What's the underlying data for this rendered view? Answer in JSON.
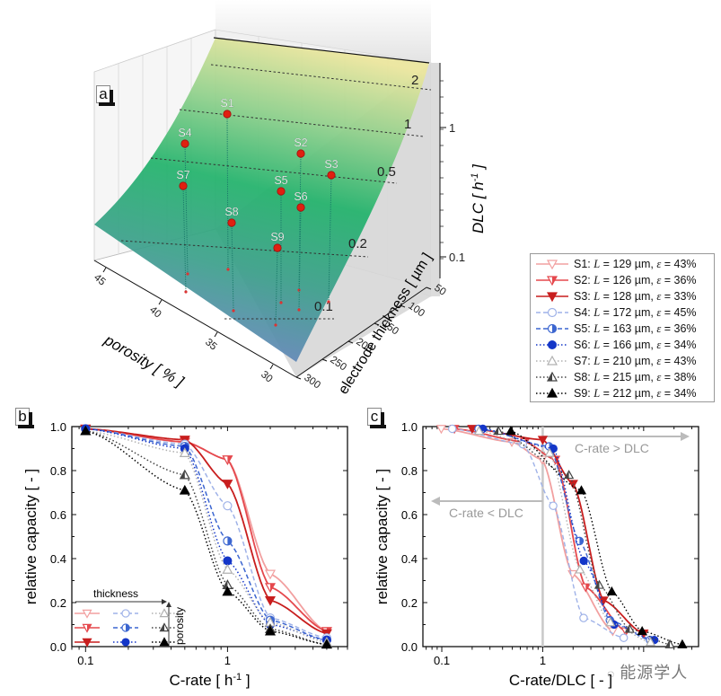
{
  "chart_data": [
    {
      "id": "a",
      "type": "surface3d",
      "panel_label": "a",
      "title": "",
      "xlabel": "porosity [ % ]",
      "ylabel": "electrode thickness [ µm ]",
      "zlabel": "DLC [ h-1 ]",
      "zlabel_main": "DLC [ h",
      "zlabel_sup": "-1",
      "zlabel_end": " ]",
      "x_ticks": [
        "45",
        "40",
        "35",
        "30"
      ],
      "y_ticks": [
        "50",
        "100",
        "150",
        "200",
        "250",
        "300"
      ],
      "z_ticks": [
        "1",
        "0.1"
      ],
      "contour_labels": [
        "2",
        "1",
        "0.5",
        "0.2",
        "0.1"
      ],
      "colormap": [
        "#6f86c2",
        "#3aa58a",
        "#22b36b",
        "#8fd08a",
        "#e8e49a"
      ],
      "zscale": "log",
      "points": [
        {
          "name": "S1",
          "porosity": 43,
          "thickness": 129,
          "DLC": 1.1
        },
        {
          "name": "S2",
          "porosity": 36,
          "thickness": 126,
          "DLC": 0.75
        },
        {
          "name": "S3",
          "porosity": 33,
          "thickness": 128,
          "DLC": 0.5
        },
        {
          "name": "S4",
          "porosity": 45,
          "thickness": 172,
          "DLC": 0.75
        },
        {
          "name": "S5",
          "porosity": 36,
          "thickness": 163,
          "DLC": 0.4
        },
        {
          "name": "S6",
          "porosity": 34,
          "thickness": 166,
          "DLC": 0.35
        },
        {
          "name": "S7",
          "porosity": 43,
          "thickness": 210,
          "DLC": 0.45
        },
        {
          "name": "S8",
          "porosity": 38,
          "thickness": 215,
          "DLC": 0.25
        },
        {
          "name": "S9",
          "porosity": 34,
          "thickness": 212,
          "DLC": 0.18
        }
      ]
    },
    {
      "id": "b",
      "type": "line",
      "panel_label": "b",
      "xlabel_main": "C-rate [ h",
      "xlabel_sup": "-1",
      "xlabel_end": " ]",
      "xlabel": "C-rate [ h-1 ]",
      "ylabel": "relative capacity [ - ]",
      "xscale": "log",
      "xlim": [
        0.08,
        7
      ],
      "ylim": [
        0,
        1
      ],
      "x_ticks": [
        {
          "v": 0.1,
          "label": "0.1"
        },
        {
          "v": 1,
          "label": "1"
        }
      ],
      "y_ticks": [
        "0.0",
        "0.2",
        "0.4",
        "0.6",
        "0.8",
        "1.0"
      ],
      "x": [
        0.1,
        0.5,
        1,
        2,
        5
      ],
      "inset_legend": {
        "thickness_label": "thickness",
        "porosity_label": "porosity"
      },
      "series": [
        {
          "name": "S1",
          "values": [
            0.99,
            0.93,
            0.85,
            0.33,
            0.07
          ]
        },
        {
          "name": "S2",
          "values": [
            0.99,
            0.93,
            0.85,
            0.27,
            0.07
          ]
        },
        {
          "name": "S3",
          "values": [
            0.99,
            0.94,
            0.74,
            0.21,
            0.06
          ]
        },
        {
          "name": "S4",
          "values": [
            0.99,
            0.92,
            0.64,
            0.13,
            0.04
          ]
        },
        {
          "name": "S5",
          "values": [
            0.99,
            0.91,
            0.48,
            0.12,
            0.03
          ]
        },
        {
          "name": "S6",
          "values": [
            0.99,
            0.9,
            0.39,
            0.1,
            0.03
          ]
        },
        {
          "name": "S7",
          "values": [
            0.98,
            0.88,
            0.35,
            0.11,
            0.02
          ]
        },
        {
          "name": "S8",
          "values": [
            0.98,
            0.78,
            0.28,
            0.08,
            0.01
          ]
        },
        {
          "name": "S9",
          "values": [
            0.98,
            0.71,
            0.25,
            0.07,
            0.01
          ]
        }
      ]
    },
    {
      "id": "c",
      "type": "line",
      "panel_label": "c",
      "xlabel": "C-rate/DLC [ - ]",
      "ylabel": "relative capacity [ - ]",
      "xscale": "log",
      "xlim": [
        0.065,
        35
      ],
      "ylim": [
        0,
        1
      ],
      "x_ticks": [
        {
          "v": 0.1,
          "label": "0.1"
        },
        {
          "v": 1,
          "label": "1"
        }
      ],
      "y_ticks": [
        "0.0",
        "0.2",
        "0.4",
        "0.6",
        "0.8",
        "1.0"
      ],
      "annotations": [
        "C-rate > DLC",
        "C-rate < DLC"
      ],
      "reference_line_x": 1,
      "dlc_values": {
        "S1": 1.1,
        "S2": 0.75,
        "S3": 0.5,
        "S4": 0.75,
        "S5": 0.4,
        "S6": 0.35,
        "S7": 0.45,
        "S8": 0.25,
        "S9": 0.18
      }
    }
  ],
  "legend": {
    "entries": [
      {
        "id": "S1",
        "prefix": "S1: ",
        "L_label": "L",
        "L_value": " = 129 µm, ",
        "eps_label": "ε",
        "eps_value": " = 43%",
        "color": "#f2a0a0",
        "marker": "tri-down-open",
        "dash": "solid"
      },
      {
        "id": "S2",
        "prefix": "S2: ",
        "L_label": "L",
        "L_value": " = 126 µm, ",
        "eps_label": "ε",
        "eps_value": " = 36%",
        "color": "#e5484d",
        "marker": "tri-down-half",
        "dash": "solid"
      },
      {
        "id": "S3",
        "prefix": "S3: ",
        "L_label": "L",
        "L_value": " = 128 µm, ",
        "eps_label": "ε",
        "eps_value": " = 33%",
        "color": "#c81e1e",
        "marker": "tri-down-filled",
        "dash": "solid"
      },
      {
        "id": "S4",
        "prefix": "S4: ",
        "L_label": "L",
        "L_value": " = 172 µm, ",
        "eps_label": "ε",
        "eps_value": " = 45%",
        "color": "#9fb2e8",
        "marker": "circle-open",
        "dash": "dashed"
      },
      {
        "id": "S5",
        "prefix": "S5: ",
        "L_label": "L",
        "L_value": " = 163 µm, ",
        "eps_label": "ε",
        "eps_value": " = 36%",
        "color": "#3c66d0",
        "marker": "circle-half",
        "dash": "dashed"
      },
      {
        "id": "S6",
        "prefix": "S6: ",
        "L_label": "L",
        "L_value": " = 166 µm, ",
        "eps_label": "ε",
        "eps_value": " = 34%",
        "color": "#1436c8",
        "marker": "circle-filled",
        "dash": "dotted"
      },
      {
        "id": "S7",
        "prefix": "S7: ",
        "L_label": "L",
        "L_value": " = 210 µm, ",
        "eps_label": "ε",
        "eps_value": " = 43%",
        "color": "#b0b0b0",
        "marker": "tri-up-open",
        "dash": "dotted"
      },
      {
        "id": "S8",
        "prefix": "S8: ",
        "L_label": "L",
        "L_value": " = 215 µm, ",
        "eps_label": "ε",
        "eps_value": " = 38%",
        "color": "#444444",
        "marker": "tri-up-half",
        "dash": "dotted"
      },
      {
        "id": "S9",
        "prefix": "S9: ",
        "L_label": "L",
        "L_value": " = 212 µm, ",
        "eps_label": "ε",
        "eps_value": " = 34%",
        "color": "#000000",
        "marker": "tri-up-filled",
        "dash": "dotted"
      }
    ]
  },
  "watermark": "能源学人"
}
